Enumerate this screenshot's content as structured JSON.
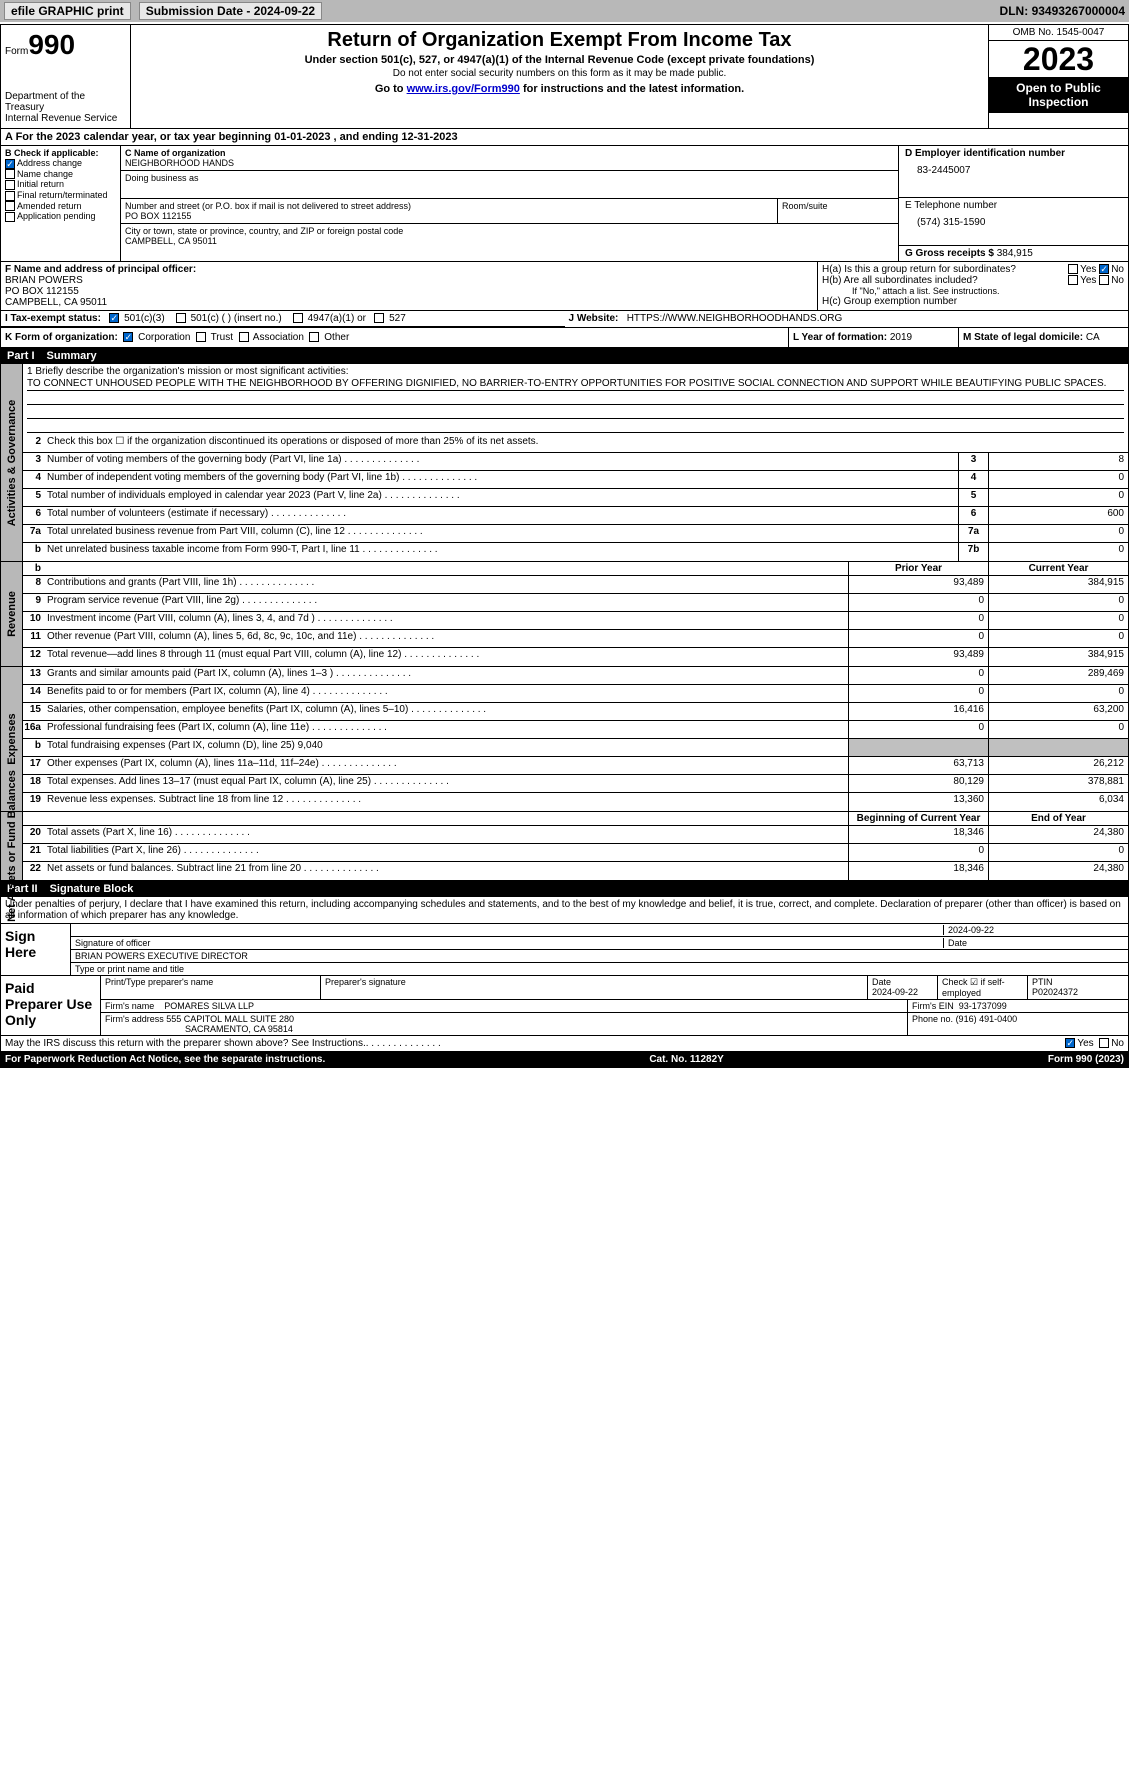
{
  "topbar": {
    "efile": "efile GRAPHIC print",
    "submission": "Submission Date - 2024-09-22",
    "dln_label": "DLN:",
    "dln": "93493267000004"
  },
  "header": {
    "form_label": "Form",
    "form_num": "990",
    "dept": "Department of the Treasury\nInternal Revenue Service",
    "title": "Return of Organization Exempt From Income Tax",
    "sub": "Under section 501(c), 527, or 4947(a)(1) of the Internal Revenue Code (except private foundations)",
    "note": "Do not enter social security numbers on this form as it may be made public.",
    "link_prefix": "Go to ",
    "link": "www.irs.gov/Form990",
    "link_suffix": " for instructions and the latest information.",
    "omb": "OMB No. 1545-0047",
    "year": "2023",
    "open": "Open to Public Inspection"
  },
  "lineA": {
    "text": "A For the 2023 calendar year, or tax year beginning 01-01-2023    , and ending 12-31-2023"
  },
  "colB": {
    "label": "B Check if applicable:",
    "items": [
      "Address change",
      "Name change",
      "Initial return",
      "Final return/terminated",
      "Amended return",
      "Application pending"
    ],
    "checked": [
      true,
      false,
      false,
      false,
      false,
      false
    ]
  },
  "colC": {
    "name_label": "C Name of organization",
    "name": "NEIGHBORHOOD HANDS",
    "dba_label": "Doing business as",
    "dba": "",
    "street_label": "Number and street (or P.O. box if mail is not delivered to street address)",
    "street": "PO BOX 112155",
    "room_label": "Room/suite",
    "city_label": "City or town, state or province, country, and ZIP or foreign postal code",
    "city": "CAMPBELL, CA  95011"
  },
  "colD": {
    "ein_label": "D Employer identification number",
    "ein": "83-2445007",
    "phone_label": "E Telephone number",
    "phone": "(574) 315-1590",
    "gross_label": "G Gross receipts $",
    "gross": "384,915"
  },
  "rowF": {
    "label": "F Name and address of principal officer:",
    "name": "BRIAN POWERS",
    "addr1": "PO BOX 112155",
    "addr2": "CAMPBELL, CA  95011",
    "ha": "H(a)  Is this a group return for subordinates?",
    "ha_no": "No",
    "hb": "H(b)  Are all subordinates included?",
    "hb_note": "If \"No,\" attach a list. See instructions.",
    "hc": "H(c)  Group exemption number"
  },
  "rowI": {
    "label": "I   Tax-exempt status:",
    "opts": [
      "501(c)(3)",
      "501(c) (  ) (insert no.)",
      "4947(a)(1) or",
      "527"
    ]
  },
  "rowJ": {
    "label": "J   Website:",
    "value": "HTTPS://WWW.NEIGHBORHOODHANDS.ORG"
  },
  "rowK": {
    "label": "K Form of organization:",
    "opts": [
      "Corporation",
      "Trust",
      "Association",
      "Other"
    ],
    "L_label": "L Year of formation:",
    "L_val": "2019",
    "M_label": "M State of legal domicile:",
    "M_val": "CA"
  },
  "part1": {
    "num": "Part I",
    "title": "Summary"
  },
  "tabs": {
    "gov": "Activities & Governance",
    "rev": "Revenue",
    "exp": "Expenses",
    "net": "Net Assets or Fund Balances"
  },
  "mission": {
    "label": "1  Briefly describe the organization's mission or most significant activities:",
    "text": "TO CONNECT UNHOUSED PEOPLE WITH THE NEIGHBORHOOD BY OFFERING DIGNIFIED, NO BARRIER-TO-ENTRY OPPORTUNITIES FOR POSITIVE SOCIAL CONNECTION AND SUPPORT WHILE BEAUTIFYING PUBLIC SPACES."
  },
  "gov_lines": [
    {
      "n": "2",
      "text": "Check this box  ☐  if the organization discontinued its operations or disposed of more than 25% of its net assets."
    },
    {
      "n": "3",
      "text": "Number of voting members of the governing body (Part VI, line 1a)",
      "box": "3",
      "val": "8"
    },
    {
      "n": "4",
      "text": "Number of independent voting members of the governing body (Part VI, line 1b)",
      "box": "4",
      "val": "0"
    },
    {
      "n": "5",
      "text": "Total number of individuals employed in calendar year 2023 (Part V, line 2a)",
      "box": "5",
      "val": "0"
    },
    {
      "n": "6",
      "text": "Total number of volunteers (estimate if necessary)",
      "box": "6",
      "val": "600"
    },
    {
      "n": "7a",
      "text": "Total unrelated business revenue from Part VIII, column (C), line 12",
      "box": "7a",
      "val": "0"
    },
    {
      "n": "b",
      "text": "Net unrelated business taxable income from Form 990-T, Part I, line 11",
      "box": "7b",
      "val": "0"
    }
  ],
  "year_headers": {
    "prior": "Prior Year",
    "current": "Current Year"
  },
  "rev_lines": [
    {
      "n": "8",
      "text": "Contributions and grants (Part VIII, line 1h)",
      "p": "93,489",
      "c": "384,915"
    },
    {
      "n": "9",
      "text": "Program service revenue (Part VIII, line 2g)",
      "p": "0",
      "c": "0"
    },
    {
      "n": "10",
      "text": "Investment income (Part VIII, column (A), lines 3, 4, and 7d )",
      "p": "0",
      "c": "0"
    },
    {
      "n": "11",
      "text": "Other revenue (Part VIII, column (A), lines 5, 6d, 8c, 9c, 10c, and 11e)",
      "p": "0",
      "c": "0"
    },
    {
      "n": "12",
      "text": "Total revenue—add lines 8 through 11 (must equal Part VIII, column (A), line 12)",
      "p": "93,489",
      "c": "384,915"
    }
  ],
  "exp_lines": [
    {
      "n": "13",
      "text": "Grants and similar amounts paid (Part IX, column (A), lines 1–3 )",
      "p": "0",
      "c": "289,469"
    },
    {
      "n": "14",
      "text": "Benefits paid to or for members (Part IX, column (A), line 4)",
      "p": "0",
      "c": "0"
    },
    {
      "n": "15",
      "text": "Salaries, other compensation, employee benefits (Part IX, column (A), lines 5–10)",
      "p": "16,416",
      "c": "63,200"
    },
    {
      "n": "16a",
      "text": "Professional fundraising fees (Part IX, column (A), line 11e)",
      "p": "0",
      "c": "0"
    },
    {
      "n": "b",
      "text": "Total fundraising expenses (Part IX, column (D), line 25) 9,040",
      "grey": true
    },
    {
      "n": "17",
      "text": "Other expenses (Part IX, column (A), lines 11a–11d, 11f–24e)",
      "p": "63,713",
      "c": "26,212"
    },
    {
      "n": "18",
      "text": "Total expenses. Add lines 13–17 (must equal Part IX, column (A), line 25)",
      "p": "80,129",
      "c": "378,881"
    },
    {
      "n": "19",
      "text": "Revenue less expenses. Subtract line 18 from line 12",
      "p": "13,360",
      "c": "6,034"
    }
  ],
  "net_headers": {
    "begin": "Beginning of Current Year",
    "end": "End of Year"
  },
  "net_lines": [
    {
      "n": "20",
      "text": "Total assets (Part X, line 16)",
      "p": "18,346",
      "c": "24,380"
    },
    {
      "n": "21",
      "text": "Total liabilities (Part X, line 26)",
      "p": "0",
      "c": "0"
    },
    {
      "n": "22",
      "text": "Net assets or fund balances. Subtract line 21 from line 20",
      "p": "18,346",
      "c": "24,380"
    }
  ],
  "part2": {
    "num": "Part II",
    "title": "Signature Block"
  },
  "penalties": "Under penalties of perjury, I declare that I have examined this return, including accompanying schedules and statements, and to the best of my knowledge and belief, it is true, correct, and complete. Declaration of preparer (other than officer) is based on all information of which preparer has any knowledge.",
  "sign": {
    "label": "Sign Here",
    "sig_label": "Signature of officer",
    "date": "2024-09-22",
    "date_label": "Date",
    "name": "BRIAN POWERS  EXECUTIVE DIRECTOR",
    "name_label": "Type or print name and title"
  },
  "paid": {
    "label": "Paid Preparer Use Only",
    "h1": "Print/Type preparer's name",
    "h2": "Preparer's signature",
    "h3": "Date",
    "h3v": "2024-09-22",
    "h4": "Check ☑ if self-employed",
    "h5": "PTIN",
    "h5v": "P02024372",
    "firm_label": "Firm's name",
    "firm": "POMARES SILVA LLP",
    "ein_label": "Firm's EIN",
    "ein": "93-1737099",
    "addr_label": "Firm's address",
    "addr1": "555 CAPITOL MALL SUITE 280",
    "addr2": "SACRAMENTO, CA  95814",
    "phone_label": "Phone no.",
    "phone": "(916) 491-0400"
  },
  "discuss": {
    "text": "May the IRS discuss this return with the preparer shown above? See Instructions.",
    "yes": "Yes",
    "no": "No"
  },
  "footer": {
    "left": "For Paperwork Reduction Act Notice, see the separate instructions.",
    "mid": "Cat. No. 11282Y",
    "right": "Form 990 (2023)"
  }
}
